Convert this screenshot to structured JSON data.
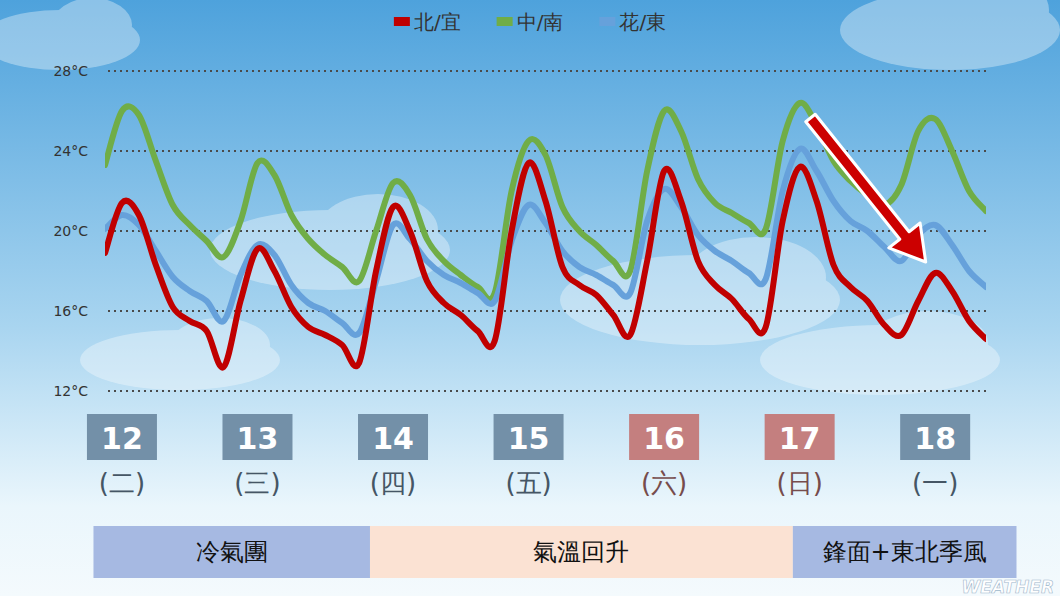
{
  "chart_data": {
    "type": "line",
    "xlim": [
      11.875,
      18.375
    ],
    "ylim": [
      12,
      28
    ],
    "yticks": [
      {
        "value": 12,
        "label": "12°C"
      },
      {
        "value": 16,
        "label": "16°C"
      },
      {
        "value": 20,
        "label": "20°C"
      },
      {
        "value": 24,
        "label": "24°C"
      },
      {
        "value": 28,
        "label": "28°C"
      }
    ],
    "xticks": [
      {
        "value": 12,
        "label": "12",
        "sublabel": "(二)",
        "color": "#7390a8"
      },
      {
        "value": 13,
        "label": "13",
        "sublabel": "(三)",
        "color": "#7390a8"
      },
      {
        "value": 14,
        "label": "14",
        "sublabel": "(四)",
        "color": "#7390a8"
      },
      {
        "value": 15,
        "label": "15",
        "sublabel": "(五)",
        "color": "#7390a8"
      },
      {
        "value": 16,
        "label": "16",
        "sublabel": "(六)",
        "color": "#c47f7f"
      },
      {
        "value": 17,
        "label": "17",
        "sublabel": "(日)",
        "color": "#c47f7f"
      },
      {
        "value": 18,
        "label": "18",
        "sublabel": "(一)",
        "color": "#7390a8"
      }
    ],
    "grid": true,
    "legend": "top",
    "x": [
      11.875,
      12,
      12.125,
      12.25,
      12.375,
      12.5,
      12.625,
      12.75,
      12.875,
      13,
      13.125,
      13.25,
      13.375,
      13.5,
      13.625,
      13.75,
      13.875,
      14,
      14.125,
      14.25,
      14.375,
      14.5,
      14.625,
      14.75,
      14.875,
      15,
      15.125,
      15.25,
      15.375,
      15.5,
      15.625,
      15.75,
      15.875,
      16,
      16.125,
      16.25,
      16.375,
      16.5,
      16.625,
      16.75,
      16.875,
      17,
      17.125,
      17.25,
      17.375,
      17.5,
      17.625,
      17.75,
      17.875,
      18,
      18.125,
      18.25,
      18.375
    ],
    "series": [
      {
        "name": "北/宜",
        "color": "#c00000",
        "values": [
          18.9,
          21.4,
          20.8,
          18.3,
          16.2,
          15.5,
          15.0,
          13.2,
          16.5,
          19.1,
          18.0,
          16.2,
          15.2,
          14.8,
          14.3,
          13.4,
          18.0,
          21.2,
          20.0,
          17.5,
          16.4,
          15.8,
          15.0,
          14.5,
          20.0,
          23.4,
          21.5,
          18.2,
          17.3,
          16.8,
          15.8,
          14.8,
          18.5,
          23.0,
          21.5,
          18.5,
          17.3,
          16.6,
          15.6,
          15.2,
          20.5,
          23.2,
          21.5,
          18.3,
          17.2,
          16.5,
          15.3,
          14.8,
          16.5,
          17.9,
          17.0,
          15.5,
          14.6
        ]
      },
      {
        "name": "中/南",
        "color": "#70ad47",
        "values": [
          23.3,
          26.0,
          25.8,
          23.5,
          21.3,
          20.3,
          19.5,
          18.7,
          20.5,
          23.4,
          22.8,
          20.8,
          19.6,
          18.8,
          18.2,
          17.5,
          20.0,
          22.4,
          21.8,
          19.6,
          18.5,
          17.8,
          17.2,
          16.9,
          22.0,
          24.5,
          23.8,
          21.2,
          20.0,
          19.3,
          18.5,
          18.0,
          23.0,
          26.0,
          25.0,
          22.6,
          21.4,
          20.9,
          20.4,
          20.1,
          24.5,
          26.4,
          25.3,
          23.5,
          22.5,
          21.8,
          21.3,
          22.3,
          25.0,
          25.6,
          24.0,
          22.0,
          21.0
        ]
      },
      {
        "name": "花/東",
        "color": "#66a1db",
        "values": [
          20.1,
          20.8,
          20.3,
          19.0,
          17.7,
          17.0,
          16.5,
          15.5,
          17.8,
          19.3,
          18.8,
          17.3,
          16.4,
          16.0,
          15.4,
          14.9,
          17.5,
          20.3,
          19.6,
          18.5,
          17.8,
          17.4,
          16.9,
          16.5,
          19.5,
          21.3,
          20.4,
          19.0,
          18.2,
          17.8,
          17.3,
          16.9,
          20.5,
          22.1,
          21.2,
          19.8,
          19.0,
          18.5,
          17.9,
          17.6,
          22.0,
          24.1,
          23.0,
          21.5,
          20.5,
          20.0,
          19.2,
          18.5,
          19.8,
          20.3,
          19.3,
          18.0,
          17.2
        ]
      }
    ],
    "annotations": [
      {
        "type": "arrow",
        "color": "#cc0000",
        "x": [
          17.08,
          17.93
        ],
        "y": [
          25.65,
          18.45
        ]
      }
    ],
    "bands": [
      {
        "label": "冷氣團",
        "from": 11.79,
        "to": 13.83,
        "color": "#a6b9e2"
      },
      {
        "label": "氣溫回升",
        "from": 13.83,
        "to": 16.95,
        "color": "#fbe2d3"
      },
      {
        "label": "鋒面+東北季風",
        "from": 16.95,
        "to": 18.6,
        "color": "#a6b9e2"
      }
    ],
    "watermark": "WEATHER"
  }
}
